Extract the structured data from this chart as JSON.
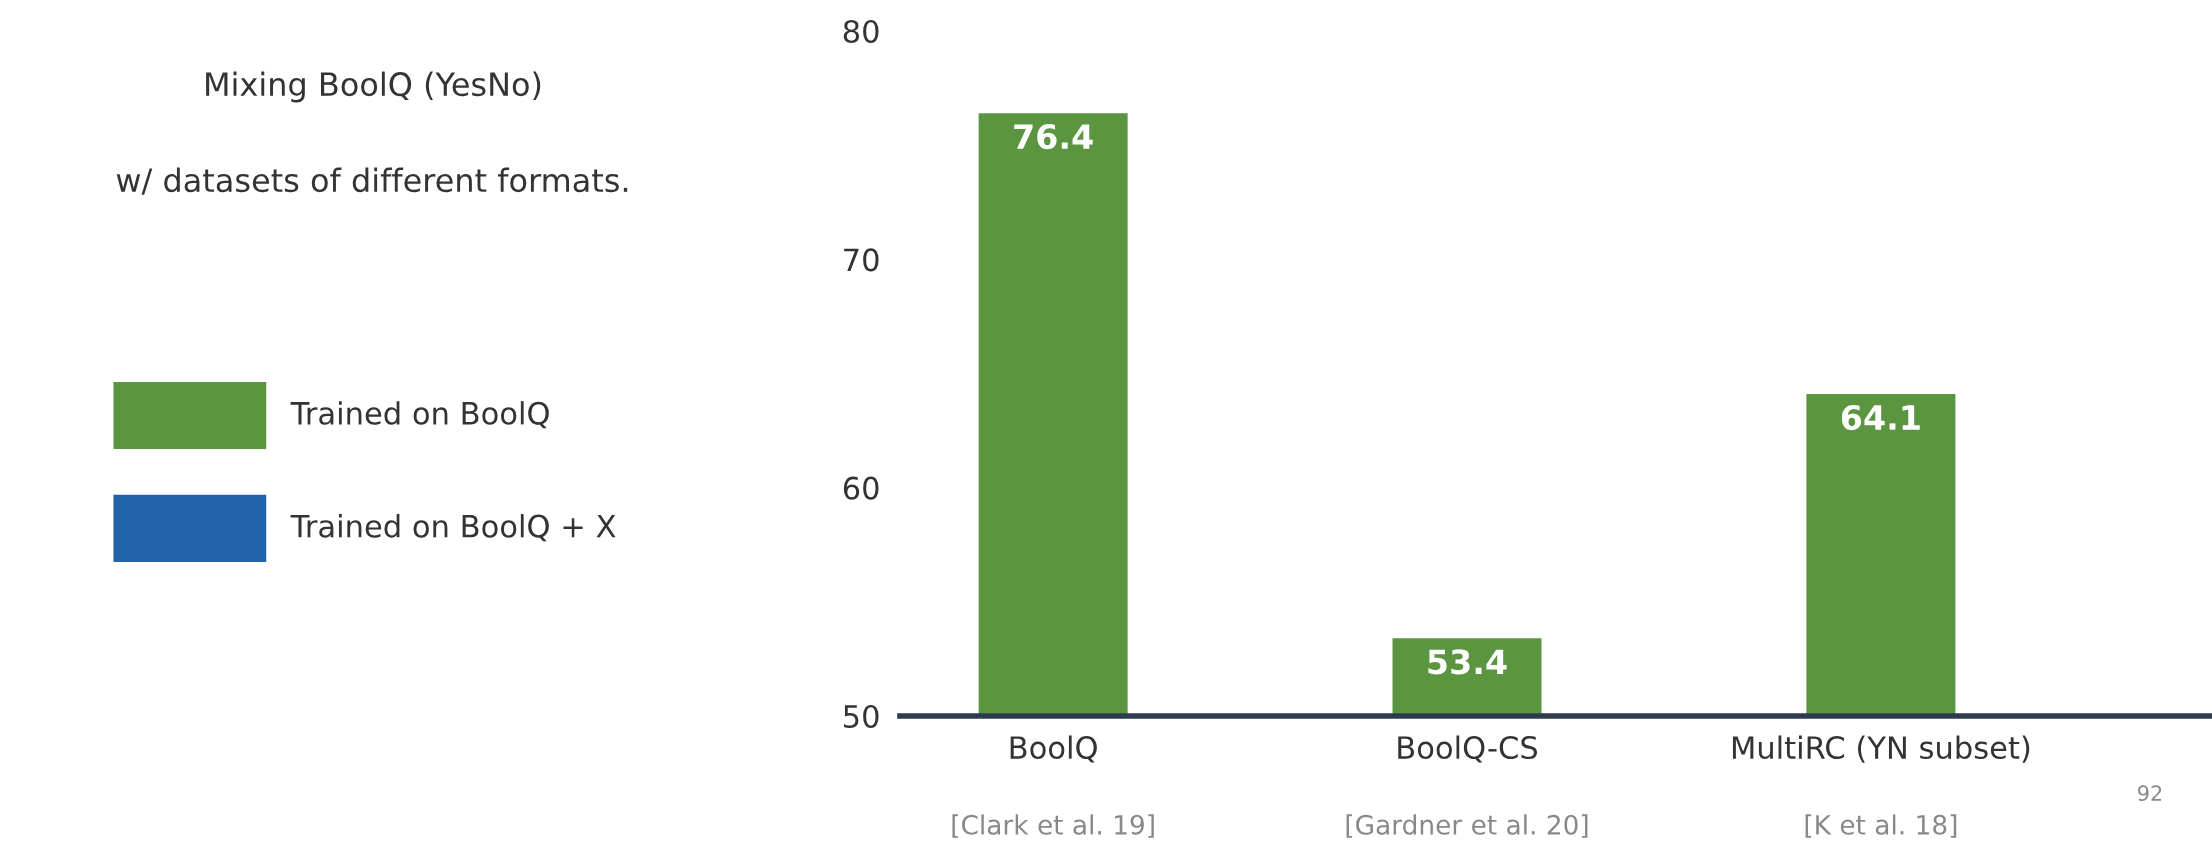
{
  "chart_data": {
    "type": "bar",
    "title": "Mixing BoolQ (YesNo)",
    "subtitle": "w/ datasets of different formats.",
    "categories": [
      "BoolQ",
      "BoolQ-CS",
      "MultiRC (YN subset)"
    ],
    "series": [
      {
        "name": "Trained on BoolQ",
        "color": "#5b9540",
        "values": [
          76.4,
          53.4,
          64.1
        ]
      },
      {
        "name": "Trained on BoolQ + X",
        "color": "#2063a8",
        "values": [
          null,
          null,
          null
        ]
      }
    ],
    "ylim": [
      50,
      80
    ],
    "yticks": [
      50,
      60,
      70,
      80
    ],
    "data_labels": true,
    "legend": "left",
    "grid": false,
    "annotations": [
      "[Clark et al. 19]",
      "[Gardner et al. 20]",
      "[K et al. 18]",
      "92"
    ]
  }
}
